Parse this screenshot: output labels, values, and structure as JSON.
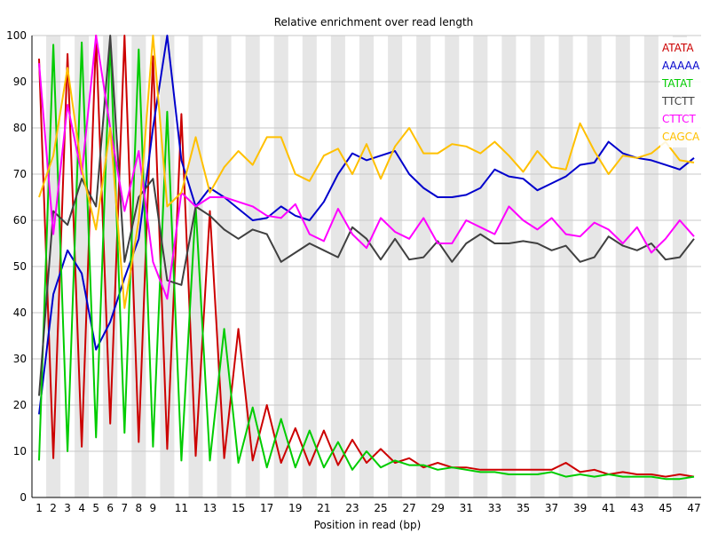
{
  "chart_data": {
    "type": "line",
    "title": "Relative enrichment over read length",
    "xlabel": "Position in read (bp)",
    "ylabel": "",
    "ylim": [
      0,
      100
    ],
    "yticks": [
      0,
      10,
      20,
      30,
      40,
      50,
      60,
      70,
      80,
      90,
      100
    ],
    "x": [
      1,
      2,
      3,
      4,
      5,
      6,
      7,
      8,
      9,
      10,
      11,
      12,
      13,
      14,
      15,
      16,
      17,
      18,
      19,
      20,
      21,
      22,
      23,
      24,
      25,
      26,
      27,
      28,
      29,
      30,
      31,
      32,
      33,
      34,
      35,
      36,
      37,
      38,
      39,
      40,
      41,
      42,
      43,
      44,
      45,
      46,
      47
    ],
    "xticks": [
      1,
      2,
      3,
      4,
      5,
      6,
      7,
      8,
      9,
      11,
      13,
      15,
      17,
      19,
      21,
      23,
      25,
      27,
      29,
      31,
      33,
      35,
      37,
      39,
      41,
      43,
      45,
      47
    ],
    "grid": "alternating vertical bands",
    "legend_position": "top-right",
    "series": [
      {
        "name": "ATATA",
        "color": "#cc0000",
        "values": [
          95,
          8.5,
          96,
          11,
          100,
          16,
          100,
          12,
          95.5,
          10.5,
          83,
          9,
          62,
          8.5,
          36.5,
          8,
          20,
          7.5,
          15,
          7,
          14.5,
          7,
          12.5,
          7.5,
          10.5,
          7.5,
          8.5,
          6.5,
          7.5,
          6.5,
          6.5,
          6,
          6,
          6,
          6,
          6,
          6,
          7.5,
          5.5,
          6,
          5,
          5.5,
          5,
          5,
          4.5,
          5,
          4.5
        ]
      },
      {
        "name": "AAAAA",
        "color": "#0000cc",
        "values": [
          18,
          44,
          53.5,
          48.5,
          32,
          38,
          47.5,
          56,
          80,
          100,
          73,
          63,
          67,
          65,
          62.5,
          60,
          60.5,
          63,
          61,
          60,
          64,
          70,
          74.5,
          73,
          74,
          75,
          70,
          67,
          65,
          65,
          65.5,
          67,
          71,
          69.5,
          69,
          66.5,
          68,
          69.5,
          72,
          72.5,
          77,
          74.5,
          73.5,
          73,
          72,
          71,
          73.5
        ]
      },
      {
        "name": "TATAT",
        "color": "#00cc00",
        "values": [
          8,
          98,
          10,
          98.5,
          13,
          99,
          14,
          97,
          11,
          83.5,
          8,
          63,
          8,
          36.5,
          7.5,
          19.5,
          6.5,
          17,
          6.5,
          14.5,
          6.5,
          12,
          6,
          10,
          6.5,
          8,
          7,
          7,
          6,
          6.5,
          6,
          5.5,
          5.5,
          5,
          5,
          5,
          5.5,
          4.5,
          5,
          4.5,
          5,
          4.5,
          4.5,
          4.5,
          4,
          4,
          4.5
        ]
      },
      {
        "name": "TTCTT",
        "color": "#404040",
        "values": [
          22,
          62,
          59,
          69,
          63,
          100,
          51,
          65,
          69,
          47,
          46,
          63,
          61,
          58,
          56,
          58,
          57,
          51,
          53,
          55,
          53.5,
          52,
          58.5,
          56,
          51.5,
          56,
          51.5,
          52,
          55.5,
          51,
          55,
          57,
          55,
          55,
          55.5,
          55,
          53.5,
          54.5,
          51,
          52,
          56.5,
          54.5,
          53.5,
          55,
          51.5,
          52,
          56
        ]
      },
      {
        "name": "CTTCT",
        "color": "#ff00ff",
        "values": [
          94,
          57,
          85,
          70,
          100,
          80,
          62,
          75,
          51,
          43,
          66,
          63,
          65,
          65,
          64,
          63,
          61,
          60.5,
          63.5,
          57,
          55.5,
          62.5,
          57,
          54,
          60.5,
          57.5,
          56,
          60.5,
          55,
          55,
          60,
          58.5,
          57,
          63,
          60,
          58,
          60.5,
          57,
          56.5,
          59.5,
          58,
          55,
          58.5,
          53,
          56,
          60,
          56.5
        ]
      },
      {
        "name": "CAGCA",
        "color": "#ffc000",
        "values": [
          65,
          74,
          93,
          71,
          58,
          80,
          41,
          60,
          100,
          63,
          66,
          78,
          66,
          71.5,
          75,
          72,
          78,
          78,
          70,
          68.5,
          74,
          75.5,
          70,
          76.5,
          69,
          76,
          80,
          74.5,
          74.5,
          76.5,
          76,
          74.5,
          77,
          74,
          70.5,
          75,
          71.5,
          71,
          81,
          75,
          70,
          74,
          73.5,
          74.5,
          77,
          73,
          72.5
        ]
      }
    ]
  }
}
